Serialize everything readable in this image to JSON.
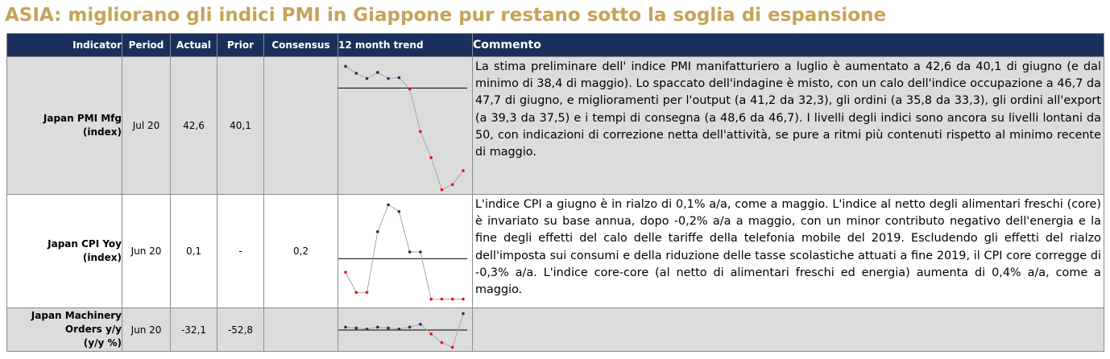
{
  "title": "ASIA: migliorano gli indici PMI in Giappone pur restano sotto la soglia di espansione",
  "headers": {
    "indicator": "Indicator",
    "period": "Period",
    "actual": "Actual",
    "prior": "Prior",
    "consensus": "Consensus",
    "trend": "12 month trend",
    "commento": "Commento"
  },
  "rows": [
    {
      "indicator_line1": "Japan PMI Mfg",
      "indicator_line2": "(index)",
      "indicator_line3": "",
      "period": "Jul 20",
      "actual": "42,6",
      "prior": "40,1",
      "consensus": "",
      "commento": "La stima preliminare dell' indice PMI manifatturiero a luglio è aumentato a 42,6 da 40,1 di giugno (e dal minimo di 38,4 di maggio). Lo spaccato dell'indagine è misto, con un calo dell'indice occupazione a 46,7 da 47,7 di giugno, e miglioramenti per l'output (a 41,2 da 32,3), gli ordini (a 35,8 da 33,3), gli ordini all'export (a 39,3 da 37,5) e i tempi di consegna (a 48,6 da 46,7). I livelli degli indici sono ancora su livelli lontani da 50, con indicazioni di correzione netta dell'attività, se pure a ritmi più contenuti rispetto al minimo recente di maggio."
    },
    {
      "indicator_line1": "Japan CPI Yoy",
      "indicator_line2": "(index)",
      "indicator_line3": "",
      "period": "Jun 20",
      "actual": "0,1",
      "prior": "-",
      "consensus": "0,2",
      "commento": "L'indice CPI a giugno è in rialzo di 0,1% a/a, come a maggio. L'indice al netto degli alimentari freschi (core) è invariato su base annua, dopo -0,2% a/a a maggio, con un minor contributo negativo dell'energia e la fine degli effetti del calo delle tariffe della telefonia mobile del 2019. Escludendo gli effetti del rialzo dell'imposta sui consumi e della riduzione delle tasse scolastiche attuati a fine 2019, il CPI core corregge di -0,3% a/a. L'indice core-core (al netto di alimentari freschi ed energia) aumenta di 0,4% a/a, come a maggio."
    },
    {
      "indicator_line1": "Japan Machinery",
      "indicator_line2": "Orders y/y",
      "indicator_line3": "(y/y %)",
      "period": "Jun 20",
      "actual": "-32,1",
      "prior": "-52,8",
      "consensus": "",
      "commento": ""
    }
  ],
  "chart_data": [
    {
      "type": "line",
      "series": [
        {
          "values": [
            52.5,
            51.7,
            51.1,
            51.8,
            51.1,
            51.2,
            49.9,
            45.0,
            42.0,
            38.3,
            38.9,
            40.5
          ]
        }
      ],
      "reference_line": 50,
      "ylim": [
        38,
        53
      ],
      "colors": {
        "above": "#1b2f5c",
        "below": "#ff0000",
        "line": "#a6a6a6"
      }
    },
    {
      "type": "line",
      "series": [
        {
          "values": [
            0.2,
            -0.1,
            -0.1,
            0.8,
            1.2,
            1.1,
            0.5,
            0.5,
            -0.2,
            -0.2,
            -0.2,
            -0.2
          ]
        }
      ],
      "reference_line": 0.4,
      "ylim": [
        -0.3,
        1.3
      ],
      "colors": {
        "above": "#1b2f5c",
        "below": "#ff0000",
        "line": "#a6a6a6"
      }
    },
    {
      "type": "line",
      "series": [
        {
          "values": [
            -5,
            -6,
            -7,
            -5,
            -6,
            -7,
            -5,
            -2,
            -12,
            -21,
            -26,
            9
          ]
        }
      ],
      "reference_line": -8,
      "ylim": [
        -28,
        12
      ],
      "colors": {
        "above": "#1b2f5c",
        "below": "#ff0000",
        "line": "#a6a6a6"
      }
    }
  ]
}
